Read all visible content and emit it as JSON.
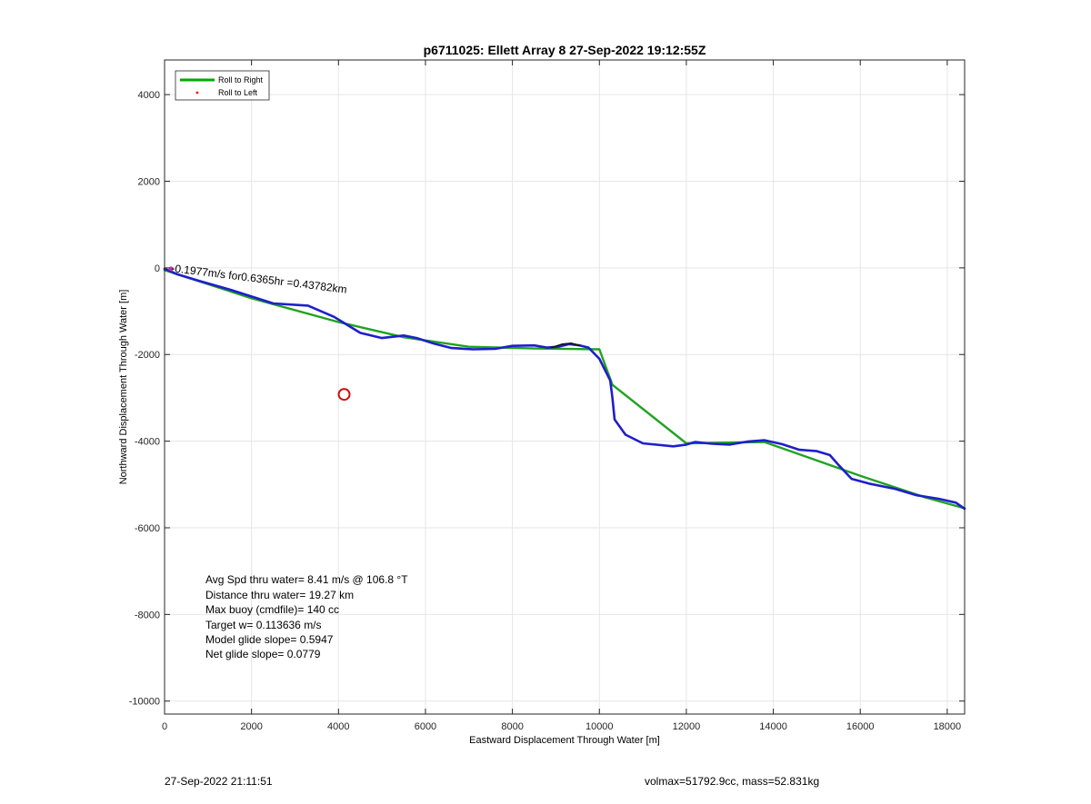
{
  "figure": {
    "footer_left": "27-Sep-2022 21:11:51",
    "footer_right": "volmax=51792.9cc, mass=52.831kg"
  },
  "chart_data": {
    "type": "line",
    "title": "p6711025: Ellett Array 8 27-Sep-2022 19:12:55Z",
    "xlabel": "Eastward Displacement Through Water [m]",
    "ylabel": "Northward Displacement Through Water [m]",
    "xlim": [
      0,
      18400
    ],
    "ylim": [
      -10300,
      4800
    ],
    "xticks": [
      0,
      2000,
      4000,
      6000,
      8000,
      10000,
      12000,
      14000,
      16000,
      18000
    ],
    "yticks": [
      -10000,
      -8000,
      -6000,
      -4000,
      -2000,
      0,
      2000,
      4000
    ],
    "grid": true,
    "legend_position": "top-left",
    "legend": [
      {
        "label": "Roll to Right",
        "color": "#00aa00",
        "style": "line"
      },
      {
        "label": "Roll to Left",
        "color": "#ff0000",
        "style": "dot"
      }
    ],
    "series": [
      {
        "name": "Roll to Right",
        "color": "#1fa31f",
        "x": [
          0,
          2000,
          4000,
          5500,
          7000,
          8500,
          10000,
          10300,
          12000,
          13800,
          16000,
          17500,
          18400
        ],
        "y": [
          -50,
          -700,
          -1250,
          -1600,
          -1820,
          -1860,
          -1880,
          -2700,
          -4050,
          -4020,
          -4800,
          -5300,
          -5550
        ]
      },
      {
        "color": "#1f1fcc",
        "x": [
          0,
          300,
          800,
          1500,
          2500,
          3300,
          3900,
          4500,
          5000,
          5500,
          5800,
          6200,
          6600,
          7100,
          7600,
          8000,
          8500,
          8800,
          9050,
          9300,
          9550,
          9750,
          10000,
          10250,
          10300,
          10350,
          10600,
          11000,
          11700,
          12000,
          12200,
          12600,
          13000,
          13400,
          13800,
          14200,
          14600,
          15000,
          15300,
          15500,
          15800,
          16200,
          16800,
          17300,
          17800,
          18200,
          18400
        ],
        "y": [
          -20,
          -150,
          -300,
          -500,
          -820,
          -870,
          -1130,
          -1500,
          -1620,
          -1560,
          -1620,
          -1750,
          -1850,
          -1880,
          -1870,
          -1800,
          -1790,
          -1840,
          -1820,
          -1760,
          -1790,
          -1840,
          -2100,
          -2600,
          -3000,
          -3500,
          -3850,
          -4050,
          -4120,
          -4080,
          -4020,
          -4060,
          -4080,
          -4010,
          -3980,
          -4070,
          -4200,
          -4230,
          -4320,
          -4550,
          -4870,
          -4980,
          -5100,
          -5250,
          -5330,
          -5420,
          -5560
        ]
      },
      {
        "color": "#111111",
        "x": [
          8900,
          9150,
          9350,
          9550
        ],
        "y": [
          -1840,
          -1760,
          -1740,
          -1790
        ]
      }
    ],
    "markers": [
      {
        "type": "circle",
        "x": 4130,
        "y": -2920,
        "color": "#cc1111"
      }
    ],
    "annotations": [
      {
        "text": "-0.1977m/s for0.6365hr =0.43782km",
        "x": 380,
        "y": -70,
        "rotation": 7
      },
      {
        "text": "Avg Spd thru water=  8.41 m/s @ 106.8 °T"
      },
      {
        "text": "Distance thru water= 19.27 km"
      },
      {
        "text": "Max buoy (cmdfile)= 140 cc"
      },
      {
        "text": "Target w= 0.113636 m/s"
      },
      {
        "text": "Model glide slope= 0.5947"
      },
      {
        "text": "Net glide slope= 0.0779"
      }
    ]
  }
}
